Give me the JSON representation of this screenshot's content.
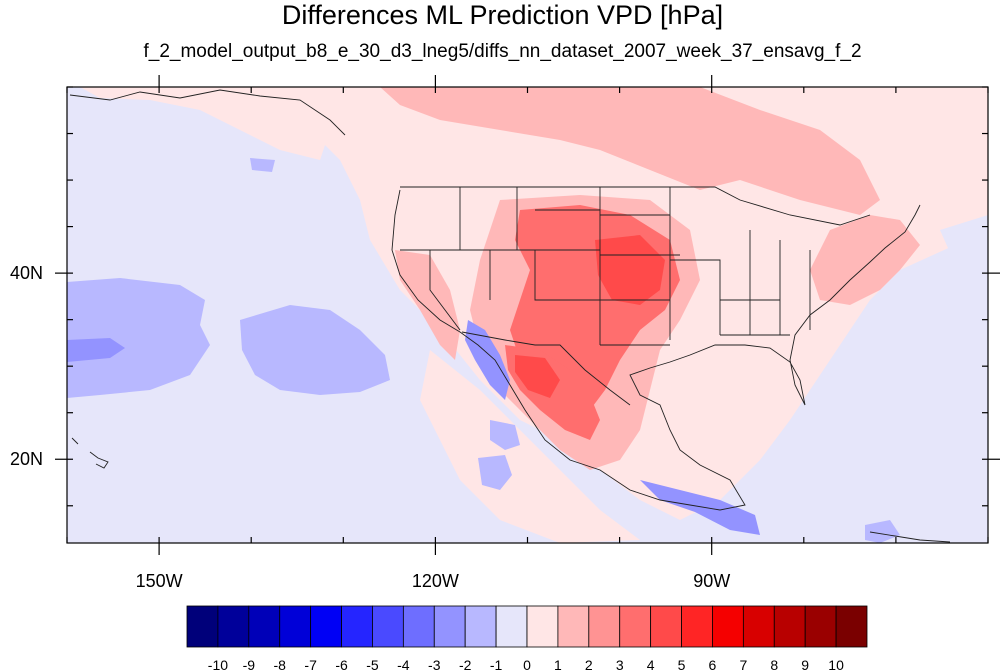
{
  "title": "Differences ML Prediction VPD [hPa]",
  "subtitle": "f_2_model_output_b8_e_30_d3_lneg5/diffs_nn_dataset_2007_week_37_ensavg_f_2",
  "map": {
    "lon_range": [
      -160,
      -60
    ],
    "lat_range": [
      11,
      60
    ],
    "x_ticks": [
      {
        "value": -150,
        "label": "150W"
      },
      {
        "value": -120,
        "label": "120W"
      },
      {
        "value": -90,
        "label": "90W"
      }
    ],
    "y_ticks": [
      {
        "value": 40,
        "label": "40N"
      },
      {
        "value": 20,
        "label": "20N"
      }
    ],
    "background_color": "#e6e6fa"
  },
  "colorbar": {
    "labels": [
      "-10",
      "-9",
      "-8",
      "-7",
      "-6",
      "-5",
      "-4",
      "-3",
      "-2",
      "-1",
      "0",
      "1",
      "2",
      "3",
      "4",
      "5",
      "6",
      "7",
      "8",
      "9",
      "10"
    ],
    "colors": [
      "#00007a",
      "#00009a",
      "#0000b8",
      "#0000d8",
      "#0000f5",
      "#2525ff",
      "#4a4aff",
      "#6e6eff",
      "#9393ff",
      "#b8b8ff",
      "#e6e6fa",
      "#ffe6e6",
      "#ffb8b8",
      "#ff9393",
      "#ff6e6e",
      "#ff4a4a",
      "#ff2525",
      "#f50000",
      "#d80000",
      "#b80000",
      "#9a0000",
      "#7a0000"
    ]
  }
}
